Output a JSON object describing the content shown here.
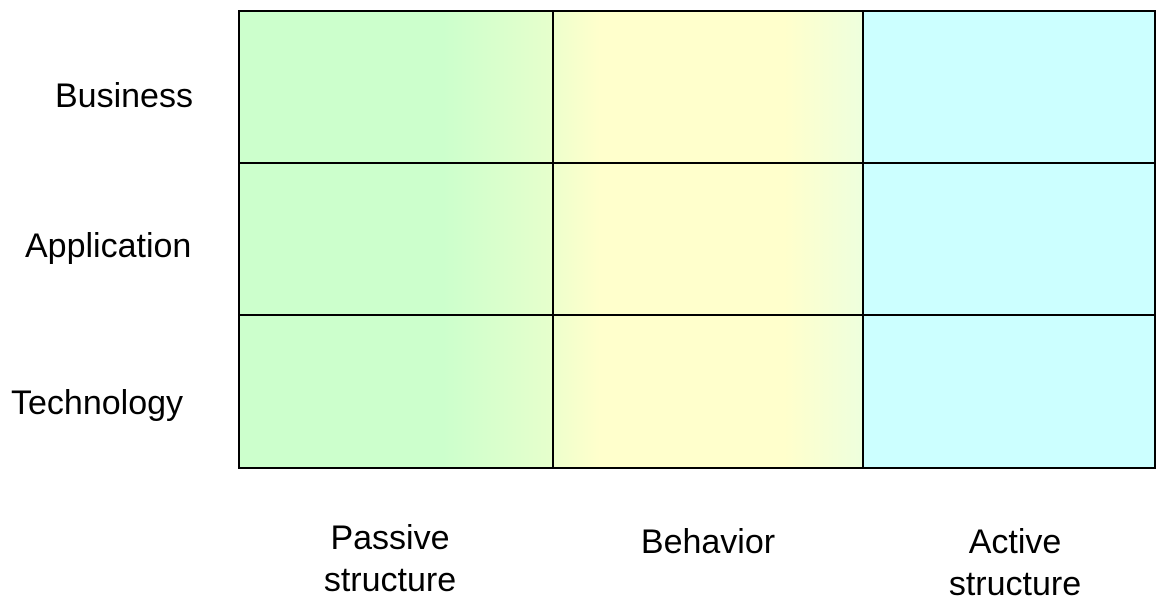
{
  "rows": [
    {
      "label": "Business"
    },
    {
      "label": "Application"
    },
    {
      "label": "Technology"
    }
  ],
  "columns": [
    {
      "line1": "Passive",
      "line2": "structure",
      "color_start": "#ccffcc",
      "color_end": "#e6ffcc"
    },
    {
      "line1": "Behavior",
      "line2": "",
      "color_start": "#ffffcc",
      "color_end": "#eeffdd"
    },
    {
      "line1": "Active",
      "line2": "structure",
      "color_start": "#ccffff",
      "color_end": "#ccffff"
    }
  ],
  "colors": {
    "border": "#000000",
    "passive": "#ccffcc",
    "behavior": "#ffffcc",
    "active": "#ccffff"
  }
}
